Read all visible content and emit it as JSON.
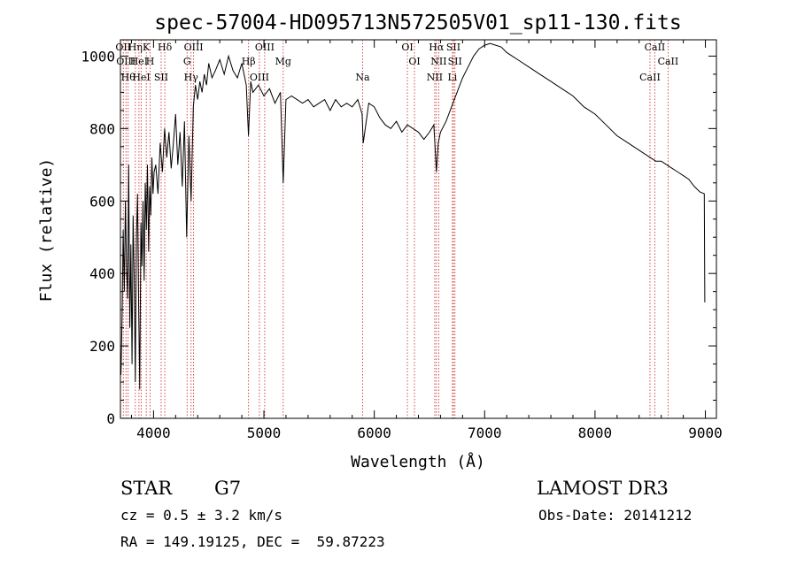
{
  "chart_data": {
    "type": "line",
    "title": "spec-57004-HD095713N572505V01_sp11-130.fits",
    "xlabel": "Wavelength (Å)",
    "ylabel": "Flux (relative)",
    "xlim": [
      3700,
      9100
    ],
    "ylim": [
      0,
      1045
    ],
    "x_ticks": [
      4000,
      5000,
      6000,
      7000,
      8000,
      9000
    ],
    "y_ticks": [
      0,
      200,
      400,
      600,
      800,
      1000
    ],
    "grid": false,
    "line_color": "#000000",
    "marker_color": "#cc2222",
    "series": [
      {
        "name": "flux",
        "x": [
          3705,
          3715,
          3725,
          3735,
          3745,
          3755,
          3765,
          3775,
          3785,
          3795,
          3805,
          3815,
          3825,
          3835,
          3845,
          3855,
          3865,
          3875,
          3885,
          3895,
          3905,
          3915,
          3925,
          3935,
          3945,
          3955,
          3965,
          3975,
          3985,
          3995,
          4005,
          4020,
          4040,
          4060,
          4080,
          4100,
          4120,
          4140,
          4160,
          4180,
          4200,
          4220,
          4240,
          4260,
          4280,
          4300,
          4320,
          4340,
          4360,
          4380,
          4400,
          4420,
          4440,
          4460,
          4480,
          4500,
          4530,
          4560,
          4600,
          4640,
          4680,
          4720,
          4760,
          4800,
          4840,
          4860,
          4880,
          4900,
          4950,
          5000,
          5050,
          5100,
          5150,
          5175,
          5200,
          5250,
          5300,
          5350,
          5400,
          5450,
          5500,
          5550,
          5600,
          5650,
          5700,
          5750,
          5800,
          5850,
          5890,
          5900,
          5950,
          6000,
          6050,
          6100,
          6150,
          6200,
          6250,
          6300,
          6350,
          6400,
          6450,
          6500,
          6540,
          6563,
          6580,
          6600,
          6650,
          6700,
          6750,
          6800,
          6850,
          6900,
          6950,
          7000,
          7050,
          7100,
          7150,
          7200,
          7250,
          7300,
          7400,
          7500,
          7600,
          7700,
          7800,
          7900,
          8000,
          8100,
          8200,
          8300,
          8400,
          8500,
          8550,
          8600,
          8650,
          8700,
          8750,
          8800,
          8850,
          8900,
          8950,
          8990,
          8995
        ],
        "y": [
          120,
          280,
          520,
          350,
          600,
          420,
          330,
          700,
          250,
          480,
          150,
          560,
          380,
          100,
          500,
          620,
          300,
          80,
          540,
          420,
          600,
          380,
          650,
          520,
          700,
          460,
          640,
          560,
          720,
          620,
          680,
          700,
          620,
          760,
          680,
          800,
          720,
          790,
          690,
          760,
          840,
          700,
          790,
          640,
          820,
          500,
          780,
          600,
          860,
          920,
          880,
          930,
          900,
          950,
          920,
          980,
          940,
          960,
          990,
          950,
          1000,
          960,
          940,
          980,
          920,
          780,
          930,
          900,
          920,
          890,
          910,
          870,
          900,
          650,
          880,
          890,
          880,
          870,
          880,
          860,
          870,
          880,
          850,
          880,
          860,
          870,
          860,
          880,
          840,
          760,
          870,
          860,
          830,
          810,
          800,
          820,
          790,
          810,
          800,
          790,
          770,
          790,
          810,
          680,
          760,
          790,
          820,
          860,
          900,
          940,
          970,
          1000,
          1020,
          1030,
          1035,
          1030,
          1025,
          1010,
          1000,
          990,
          970,
          950,
          930,
          910,
          890,
          860,
          840,
          810,
          780,
          760,
          740,
          720,
          710,
          710,
          700,
          690,
          680,
          670,
          660,
          640,
          625,
          620,
          320
        ]
      }
    ],
    "lines": [
      {
        "wl": 3726,
        "label": "OII"
      },
      {
        "wl": 3750,
        "label": "OIII"
      },
      {
        "wl": 3770,
        "label": "Hθ"
      },
      {
        "wl": 3835,
        "label": "Hη"
      },
      {
        "wl": 3868,
        "label": "HeI"
      },
      {
        "wl": 3889,
        "label": "HeI"
      },
      {
        "wl": 3934,
        "label": "K"
      },
      {
        "wl": 3969,
        "label": "H"
      },
      {
        "wl": 4069,
        "label": "SII"
      },
      {
        "wl": 4102,
        "label": "Hδ"
      },
      {
        "wl": 4304,
        "label": "G"
      },
      {
        "wl": 4340,
        "label": "Hγ"
      },
      {
        "wl": 4363,
        "label": "OIII"
      },
      {
        "wl": 4861,
        "label": "Hβ"
      },
      {
        "wl": 4959,
        "label": "OIII"
      },
      {
        "wl": 5007,
        "label": "OIII"
      },
      {
        "wl": 5175,
        "label": "Mg"
      },
      {
        "wl": 5894,
        "label": "Na"
      },
      {
        "wl": 6300,
        "label": "OI"
      },
      {
        "wl": 6364,
        "label": "OI"
      },
      {
        "wl": 6548,
        "label": "NII"
      },
      {
        "wl": 6563,
        "label": "Hα"
      },
      {
        "wl": 6584,
        "label": "NII"
      },
      {
        "wl": 6708,
        "label": "Li"
      },
      {
        "wl": 6717,
        "label": "SII"
      },
      {
        "wl": 6731,
        "label": "SII"
      },
      {
        "wl": 8498,
        "label": "CaII"
      },
      {
        "wl": 8542,
        "label": "CaII"
      },
      {
        "wl": 8662,
        "label": "CaII"
      }
    ]
  },
  "info": {
    "object_class": "STAR",
    "subclass": "G7",
    "survey": "LAMOST DR3",
    "redshift": "cz = 0.5 ± 3.2 km/s",
    "obs_date": "Obs-Date: 20141212",
    "coords": "RA = 149.19125, DEC =  59.87223"
  }
}
